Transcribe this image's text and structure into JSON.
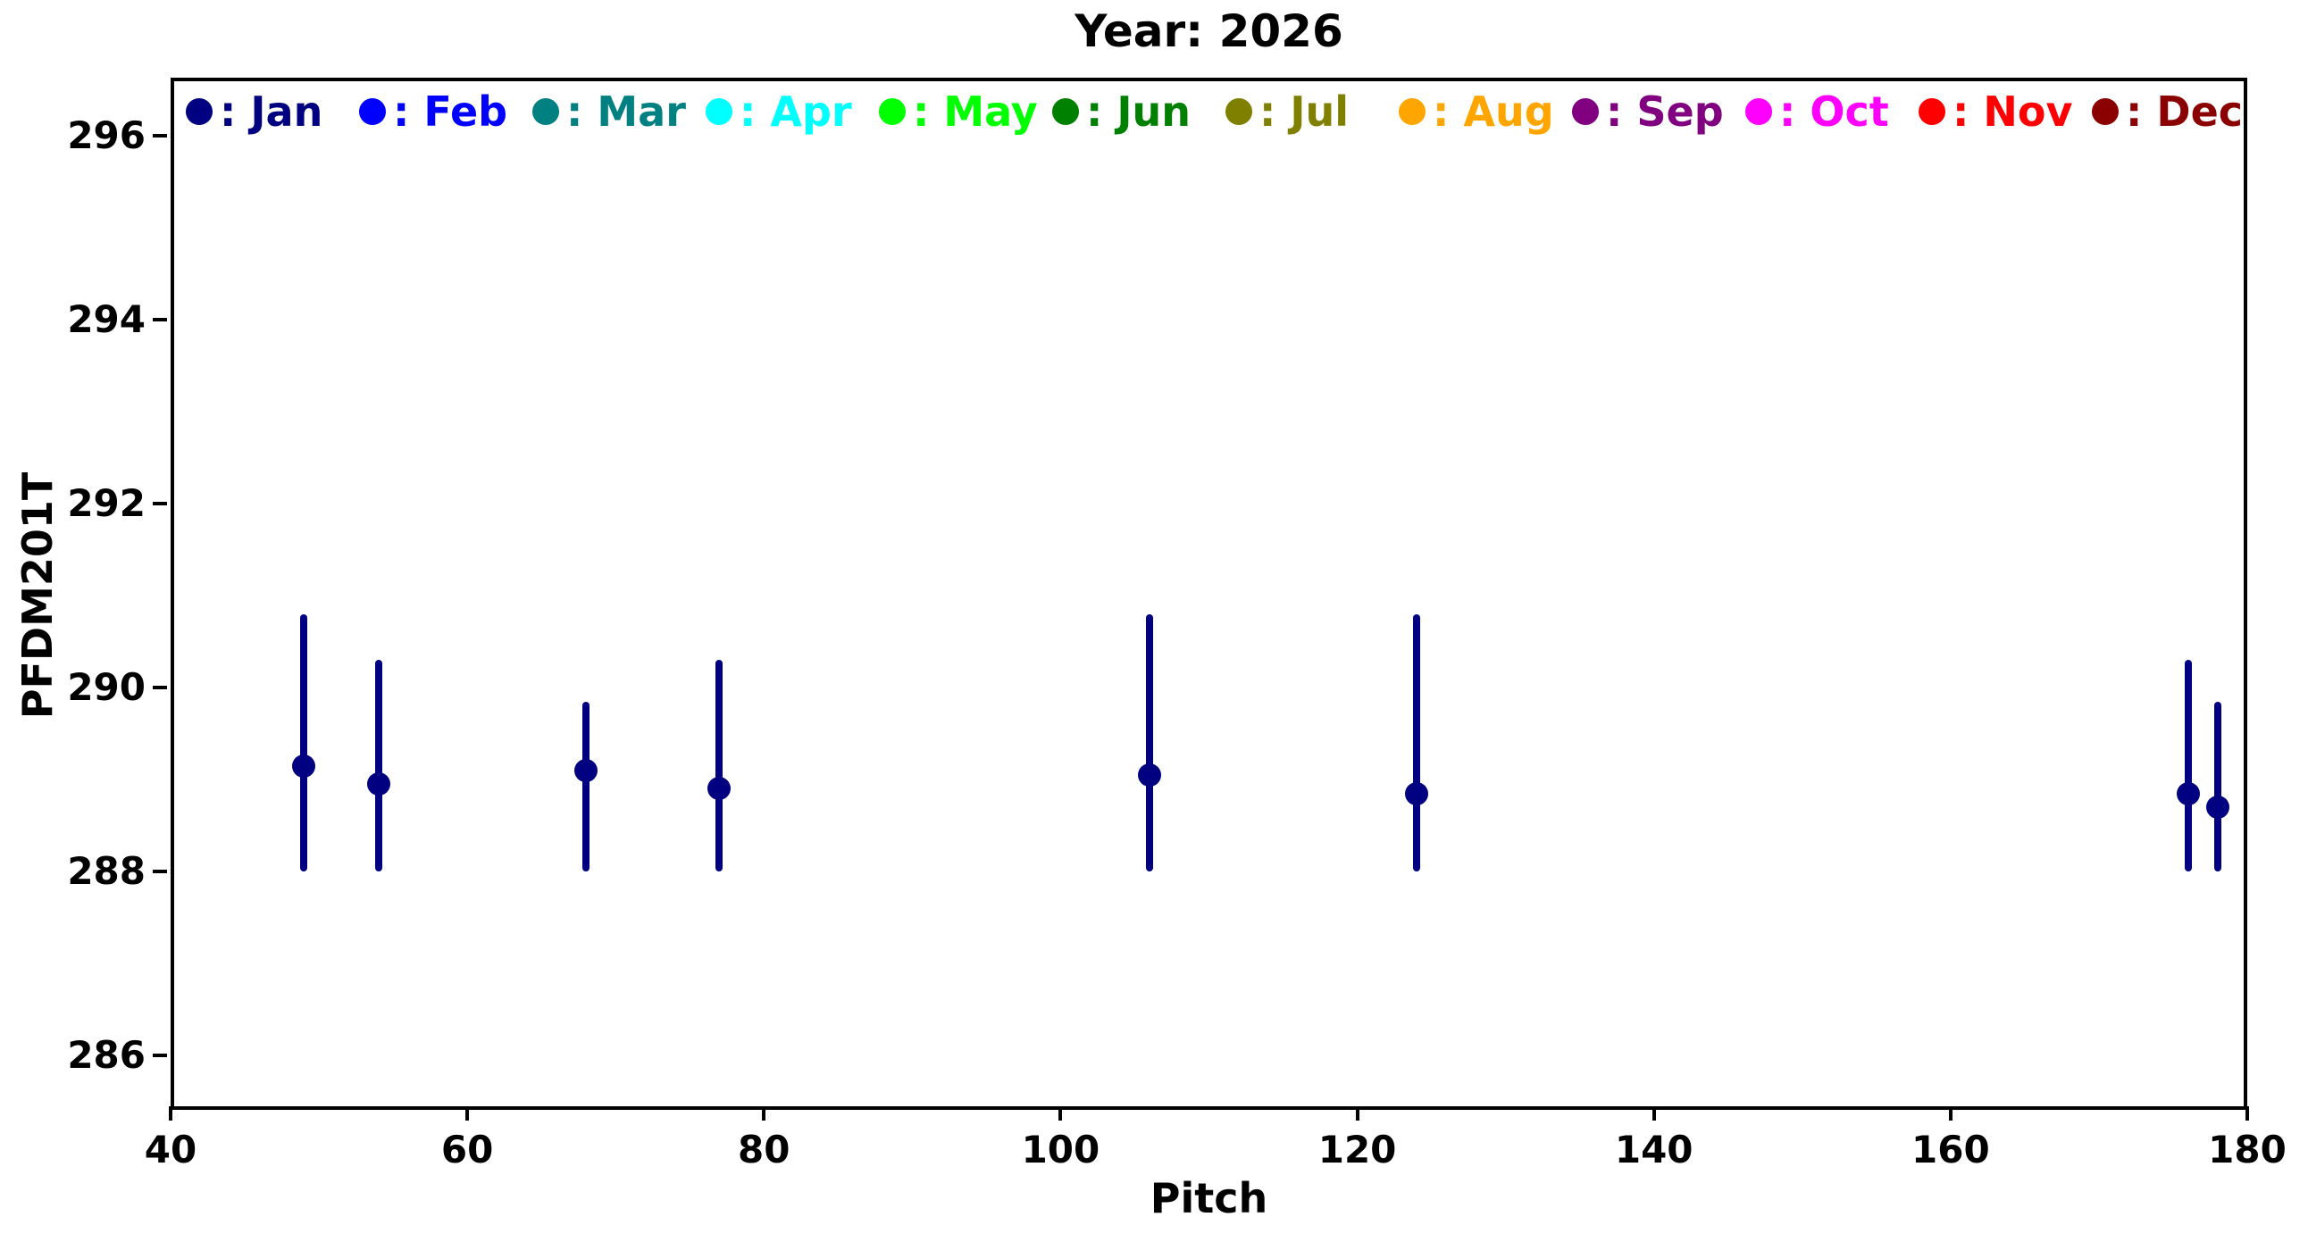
{
  "chart_data": {
    "type": "scatter",
    "title": "Year: 2026",
    "xlabel": "Pitch",
    "ylabel": "PFDM201T",
    "xlim": [
      40,
      180
    ],
    "ylim": [
      285.41,
      296.63
    ],
    "xticks": [
      40,
      60,
      80,
      100,
      120,
      140,
      160,
      180
    ],
    "yticks": [
      286,
      288,
      290,
      292,
      294,
      296
    ],
    "grid": false,
    "legend_position": "top row inside plot",
    "legend_separator": ": ",
    "legend": [
      {
        "label": "Jan",
        "color": "#000080"
      },
      {
        "label": "Feb",
        "color": "#0000FF"
      },
      {
        "label": "Mar",
        "color": "#008080"
      },
      {
        "label": "Apr",
        "color": "#00FFFF"
      },
      {
        "label": "May",
        "color": "#00FF00"
      },
      {
        "label": "Jun",
        "color": "#008000"
      },
      {
        "label": "Jul",
        "color": "#808000"
      },
      {
        "label": "Aug",
        "color": "#FFA500"
      },
      {
        "label": "Sep",
        "color": "#800080"
      },
      {
        "label": "Oct",
        "color": "#FF00FF"
      },
      {
        "label": "Nov",
        "color": "#FF0000"
      },
      {
        "label": "Dec",
        "color": "#8B0000"
      }
    ],
    "series": [
      {
        "name": "Jan",
        "color": "#000080",
        "marker": "circle",
        "points": [
          {
            "x": 49,
            "y": 289.15,
            "ylo": 288.0,
            "yhi": 290.8
          },
          {
            "x": 54,
            "y": 288.95,
            "ylo": 288.0,
            "yhi": 290.3
          },
          {
            "x": 68,
            "y": 289.1,
            "ylo": 288.0,
            "yhi": 289.85
          },
          {
            "x": 77,
            "y": 288.9,
            "ylo": 288.0,
            "yhi": 290.3
          },
          {
            "x": 106,
            "y": 289.05,
            "ylo": 288.0,
            "yhi": 290.8
          },
          {
            "x": 124,
            "y": 288.85,
            "ylo": 288.0,
            "yhi": 290.8
          },
          {
            "x": 176,
            "y": 288.85,
            "ylo": 288.0,
            "yhi": 290.3
          },
          {
            "x": 178,
            "y": 288.7,
            "ylo": 288.0,
            "yhi": 289.85
          }
        ]
      }
    ]
  }
}
